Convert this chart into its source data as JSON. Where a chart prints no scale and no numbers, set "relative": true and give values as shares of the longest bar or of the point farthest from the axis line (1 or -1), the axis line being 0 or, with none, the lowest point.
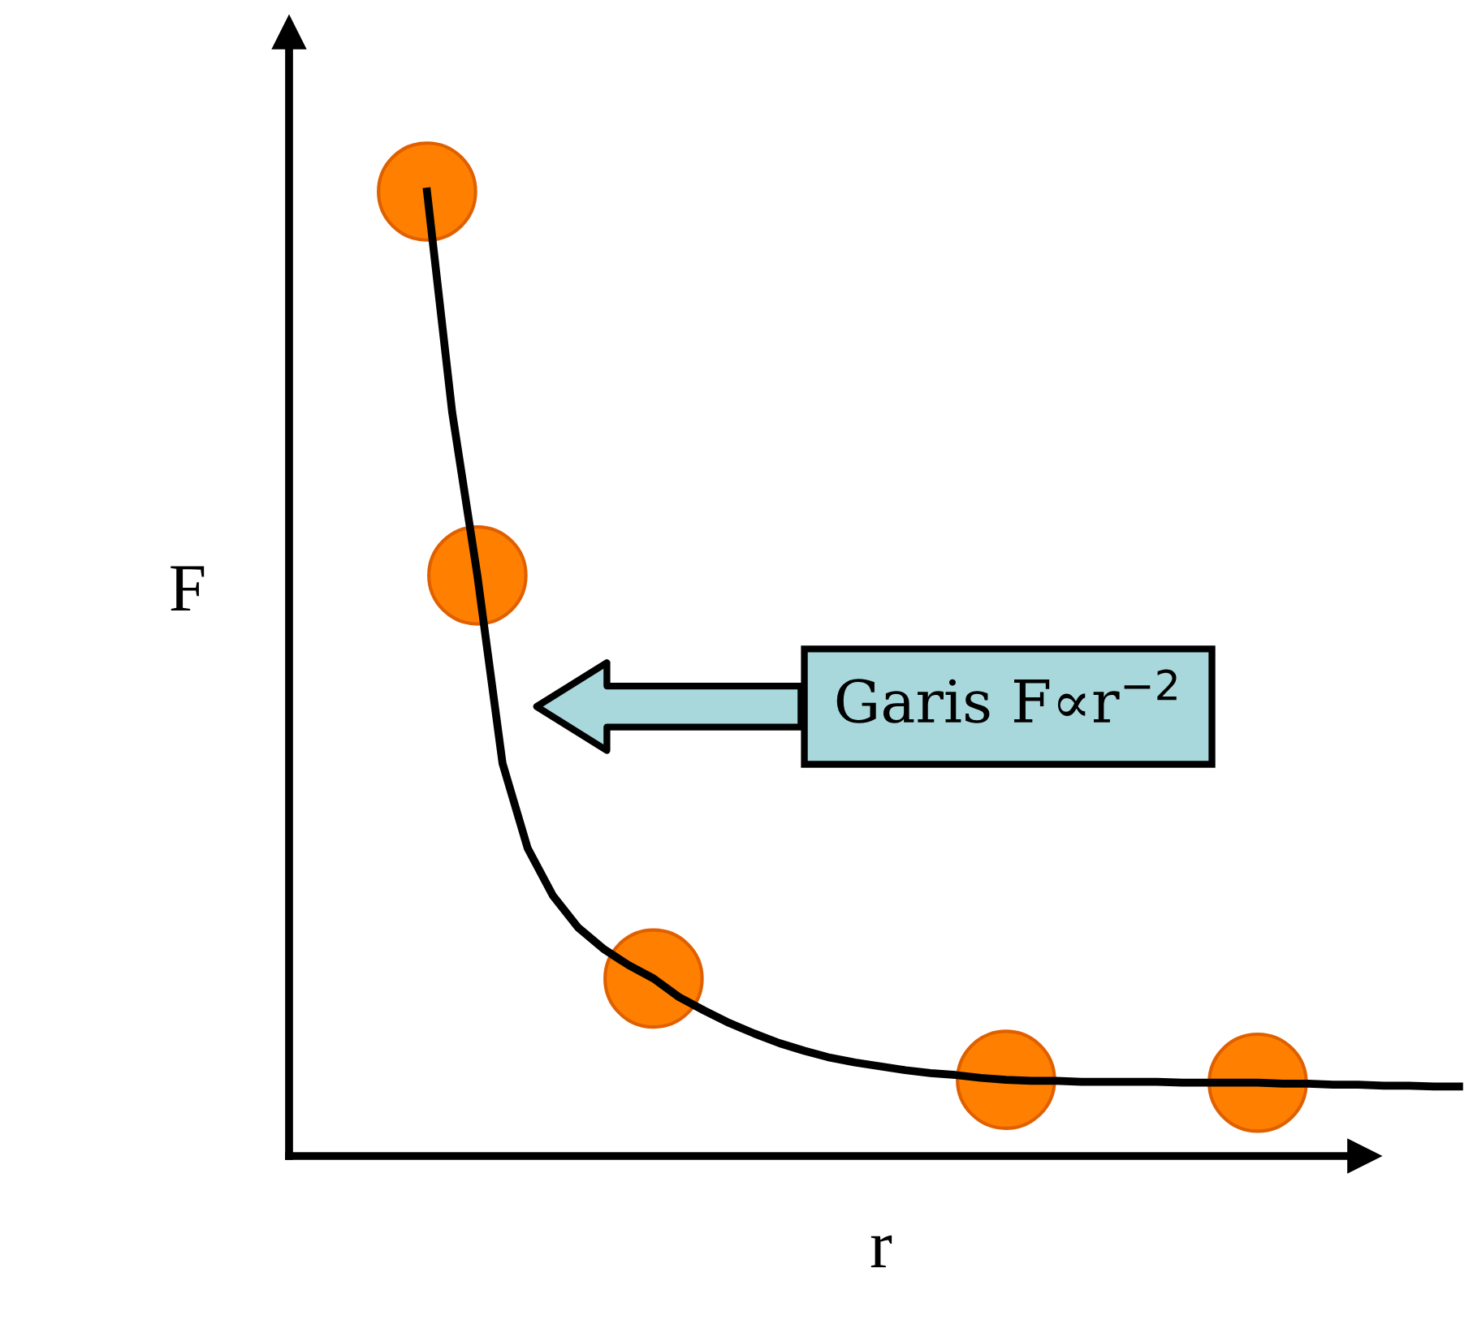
{
  "chart_data": {
    "type": "line",
    "relative": true,
    "xlabel": "r",
    "ylabel": "F",
    "marker": "none",
    "line_style": "solid",
    "categories": [
      null,
      null,
      null,
      null,
      null,
      null,
      null,
      null,
      null,
      null,
      null,
      null,
      null,
      null,
      null,
      null,
      null,
      null,
      null,
      null,
      null,
      null,
      null,
      null,
      null,
      null,
      null,
      null,
      null,
      null,
      null,
      null,
      null,
      null,
      null,
      null,
      null,
      null,
      null,
      null,
      null,
      null
    ],
    "series": [
      {
        "color": "#000000",
        "values": [
          1.0,
          0.771,
          0.602,
          0.407,
          0.319,
          0.27,
          0.237,
          0.215,
          0.198,
          0.184,
          0.165,
          0.151,
          0.138,
          0.127,
          0.117,
          0.109,
          0.102,
          0.097,
          0.093,
          0.089,
          0.086,
          0.084,
          0.081,
          0.079,
          0.078,
          0.078,
          0.077,
          0.077,
          0.077,
          0.077,
          0.076,
          0.076,
          0.076,
          0.076,
          0.075,
          0.075,
          0.074,
          0.074,
          0.073,
          0.073,
          0.072,
          0.072
        ]
      }
    ],
    "annotations": [
      "Garis F∝r$^{−2}$"
    ]
  }
}
